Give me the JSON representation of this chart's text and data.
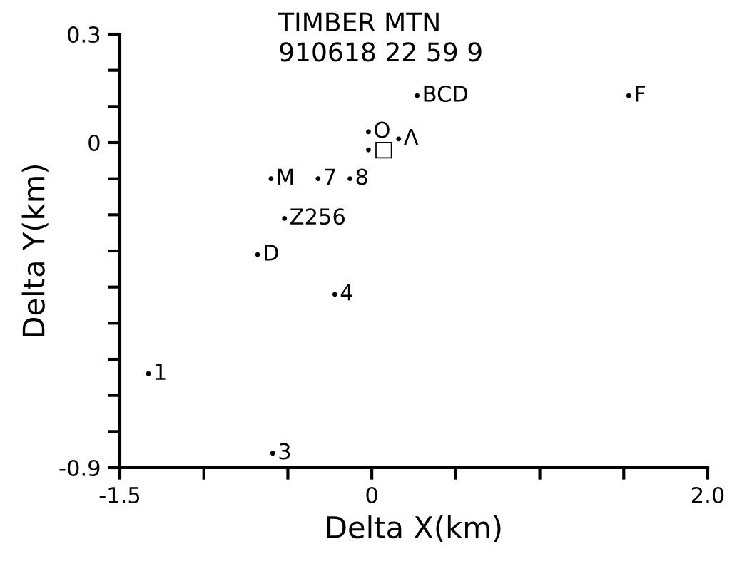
{
  "chart_data": {
    "type": "scatter",
    "title": "TIMBER MTN",
    "subtitle": "910618 22 59 9",
    "xlabel": "Delta X(km)",
    "ylabel": "Delta Y(km)",
    "xlim": [
      -1.5,
      2.0
    ],
    "ylim": [
      -0.9,
      0.3
    ],
    "xticks": [
      -1.5,
      {
        "value": -1.0,
        "label": null
      },
      {
        "value": -0.5,
        "label": null
      },
      0,
      {
        "value": 0.5,
        "label": null
      },
      {
        "value": 1.0,
        "label": null
      },
      {
        "value": 1.5,
        "label": null
      },
      {
        "value": 2.0,
        "label": "2.0"
      }
    ],
    "yticks": [
      -0.9,
      {
        "value": -0.8,
        "label": null
      },
      {
        "value": -0.7,
        "label": null
      },
      {
        "value": -0.6,
        "label": null
      },
      {
        "value": -0.5,
        "label": null
      },
      {
        "value": -0.4,
        "label": null
      },
      {
        "value": -0.3,
        "label": null
      },
      {
        "value": -0.2,
        "label": null
      },
      {
        "value": -0.1,
        "label": null
      },
      0,
      {
        "value": 0.1,
        "label": null
      },
      {
        "value": 0.2,
        "label": null
      },
      0.3
    ],
    "grid": false,
    "legend": false,
    "marker": "circle",
    "series": [
      {
        "color": "#000000",
        "x": [
          0.27,
          1.53,
          -0.02,
          -0.02,
          0.16,
          -0.6,
          -0.32,
          -0.13,
          -0.52,
          -0.68,
          -0.22,
          -1.33,
          -0.59
        ],
        "values": [
          0.13,
          0.13,
          0.03,
          -0.02,
          0.01,
          -0.1,
          -0.1,
          -0.1,
          -0.21,
          -0.31,
          -0.42,
          -0.64,
          -0.86
        ]
      }
    ],
    "annotations": [
      {
        "text": "BCD",
        "x": 0.27,
        "y": 0.13
      },
      {
        "text": "F",
        "x": 1.53,
        "y": 0.13
      },
      {
        "text": "O",
        "x": -0.02,
        "y": 0.03
      },
      {
        "text": "□",
        "x": -0.02,
        "y": -0.02
      },
      {
        "text": "Λ",
        "x": 0.16,
        "y": 0.01
      },
      {
        "text": "M",
        "x": -0.6,
        "y": -0.1
      },
      {
        "text": "7",
        "x": -0.32,
        "y": -0.1
      },
      {
        "text": "8",
        "x": -0.13,
        "y": -0.1
      },
      {
        "text": "Z256",
        "x": -0.52,
        "y": -0.21
      },
      {
        "text": "D",
        "x": -0.68,
        "y": -0.31
      },
      {
        "text": "4",
        "x": -0.22,
        "y": -0.42
      },
      {
        "text": "1",
        "x": -1.33,
        "y": -0.64
      },
      {
        "text": "3",
        "x": -0.59,
        "y": -0.86
      }
    ]
  }
}
